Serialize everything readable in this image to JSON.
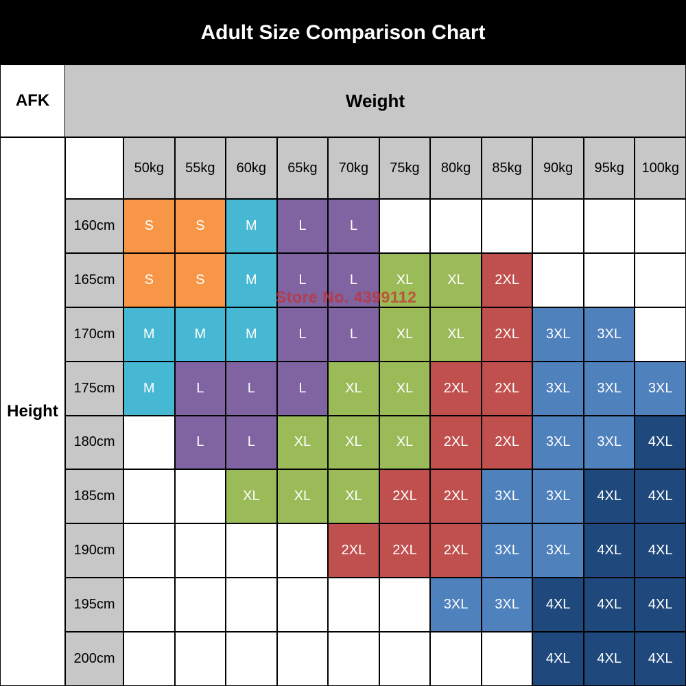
{
  "title": "Adult Size Comparison Chart",
  "watermark": "Store No. 4399112",
  "chart_data": {
    "type": "table",
    "title": "Adult Size Comparison Chart",
    "corner_label": "AFK",
    "column_group_label": "Weight",
    "row_group_label": "Height",
    "columns": [
      "50kg",
      "55kg",
      "60kg",
      "65kg",
      "70kg",
      "75kg",
      "80kg",
      "85kg",
      "90kg",
      "95kg",
      "100kg"
    ],
    "rows": [
      "160cm",
      "165cm",
      "170cm",
      "175cm",
      "180cm",
      "185cm",
      "190cm",
      "195cm",
      "200cm"
    ],
    "grid": [
      [
        "S",
        "S",
        "M",
        "L",
        "L",
        "",
        "",
        "",
        "",
        "",
        ""
      ],
      [
        "S",
        "S",
        "M",
        "L",
        "L",
        "XL",
        "XL",
        "2XL",
        "",
        "",
        ""
      ],
      [
        "M",
        "M",
        "M",
        "L",
        "L",
        "XL",
        "XL",
        "2XL",
        "3XL",
        "3XL",
        ""
      ],
      [
        "M",
        "L",
        "L",
        "L",
        "XL",
        "XL",
        "2XL",
        "2XL",
        "3XL",
        "3XL",
        "3XL"
      ],
      [
        "",
        "L",
        "L",
        "XL",
        "XL",
        "XL",
        "2XL",
        "2XL",
        "3XL",
        "3XL",
        "4XL"
      ],
      [
        "",
        "",
        "XL",
        "XL",
        "XL",
        "2XL",
        "2XL",
        "3XL",
        "3XL",
        "4XL",
        "4XL"
      ],
      [
        "",
        "",
        "",
        "",
        "2XL",
        "2XL",
        "2XL",
        "3XL",
        "3XL",
        "4XL",
        "4XL"
      ],
      [
        "",
        "",
        "",
        "",
        "",
        "",
        "3XL",
        "3XL",
        "4XL",
        "4XL",
        "4XL"
      ],
      [
        "",
        "",
        "",
        "",
        "",
        "",
        "",
        "",
        "4XL",
        "4XL",
        "4XL"
      ]
    ],
    "size_colors": {
      "S": "#f79646",
      "M": "#46b8d3",
      "L": "#8064a2",
      "XL": "#9bbb59",
      "2XL": "#c0504d",
      "3XL": "#4f81bd",
      "4XL": "#1f497d"
    },
    "header_bg": "#c7c7c7",
    "title_bg": "#000000",
    "title_color": "#ffffff"
  }
}
